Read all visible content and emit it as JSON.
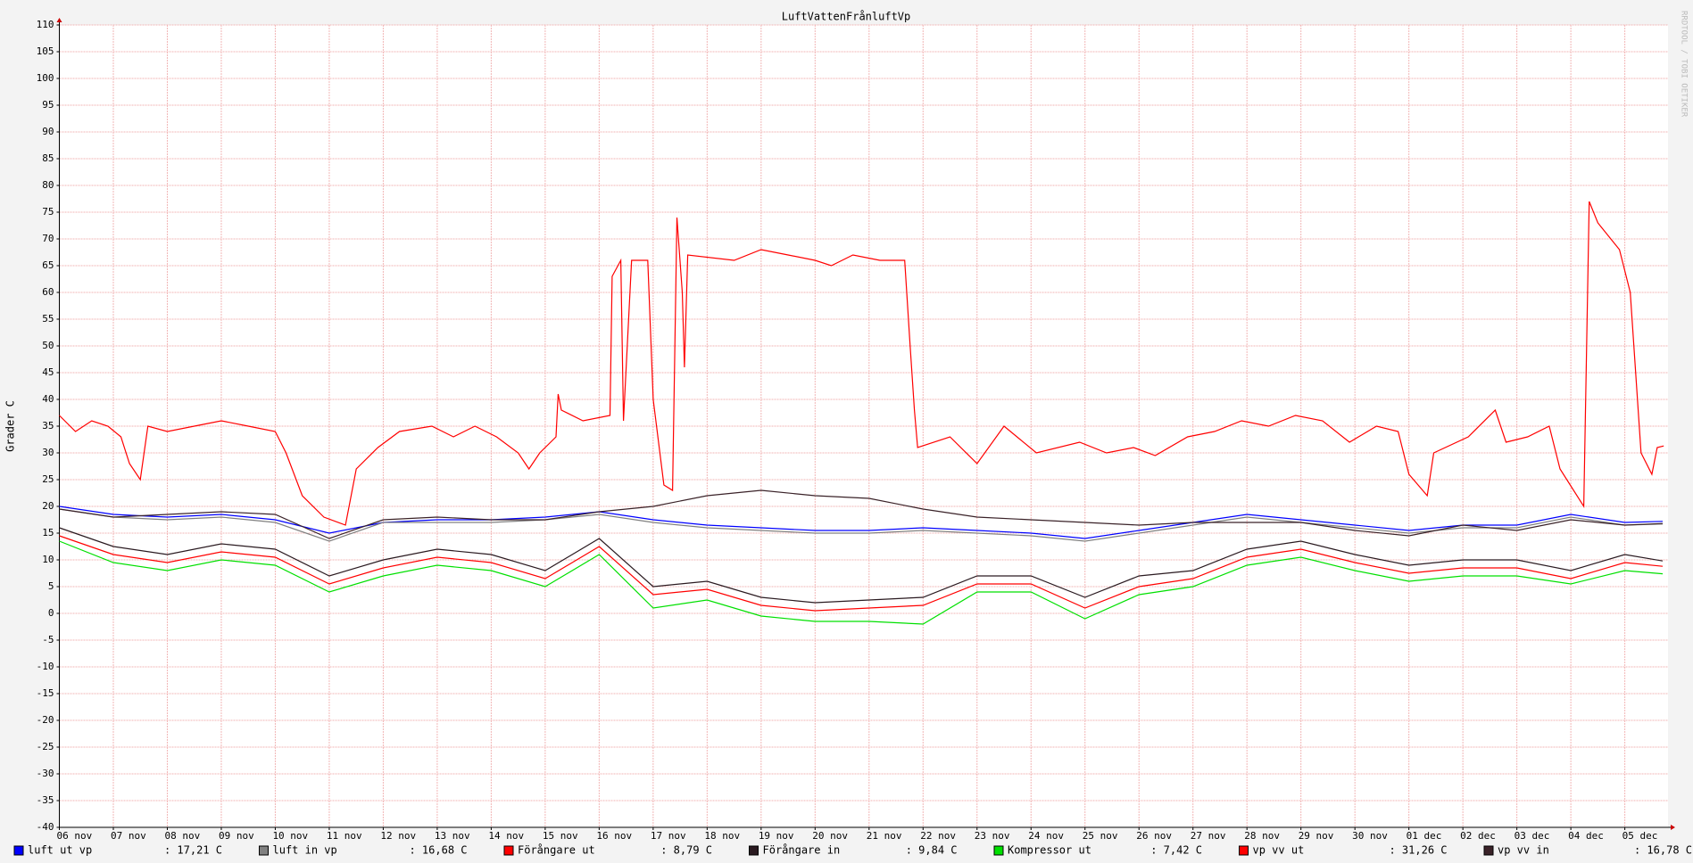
{
  "chart_data": {
    "type": "line",
    "title": "LuftVattenFrånluftVp",
    "y_label": "Grader C",
    "watermark": "RRDTOOL / TOBI OETIKER",
    "grid": true,
    "xlim": [
      0,
      29.8
    ],
    "ylim": [
      -40,
      110
    ],
    "xticks": [
      {
        "value": 0,
        "label": "06 nov"
      },
      {
        "value": 1,
        "label": "07 nov"
      },
      {
        "value": 2,
        "label": "08 nov"
      },
      {
        "value": 3,
        "label": "09 nov"
      },
      {
        "value": 4,
        "label": "10 nov"
      },
      {
        "value": 5,
        "label": "11 nov"
      },
      {
        "value": 6,
        "label": "12 nov"
      },
      {
        "value": 7,
        "label": "13 nov"
      },
      {
        "value": 8,
        "label": "14 nov"
      },
      {
        "value": 9,
        "label": "15 nov"
      },
      {
        "value": 10,
        "label": "16 nov"
      },
      {
        "value": 11,
        "label": "17 nov"
      },
      {
        "value": 12,
        "label": "18 nov"
      },
      {
        "value": 13,
        "label": "19 nov"
      },
      {
        "value": 14,
        "label": "20 nov"
      },
      {
        "value": 15,
        "label": "21 nov"
      },
      {
        "value": 16,
        "label": "22 nov"
      },
      {
        "value": 17,
        "label": "23 nov"
      },
      {
        "value": 18,
        "label": "24 nov"
      },
      {
        "value": 19,
        "label": "25 nov"
      },
      {
        "value": 20,
        "label": "26 nov"
      },
      {
        "value": 21,
        "label": "27 nov"
      },
      {
        "value": 22,
        "label": "28 nov"
      },
      {
        "value": 23,
        "label": "29 nov"
      },
      {
        "value": 24,
        "label": "30 nov"
      },
      {
        "value": 25,
        "label": "01 dec"
      },
      {
        "value": 26,
        "label": "02 dec"
      },
      {
        "value": 27,
        "label": "03 dec"
      },
      {
        "value": 28,
        "label": "04 dec"
      },
      {
        "value": 29,
        "label": "05 dec"
      }
    ],
    "yticks": [
      -40,
      -35,
      -30,
      -25,
      -20,
      -15,
      -10,
      -5,
      0,
      5,
      10,
      15,
      20,
      25,
      30,
      35,
      40,
      45,
      50,
      55,
      60,
      65,
      70,
      75,
      80,
      85,
      90,
      95,
      100,
      105,
      110
    ],
    "x": [
      0,
      1,
      2,
      3,
      4,
      5,
      6,
      7,
      8,
      9,
      10,
      11,
      12,
      13,
      14,
      15,
      16,
      17,
      18,
      19,
      20,
      21,
      22,
      23,
      24,
      25,
      26,
      27,
      28,
      29,
      29.7
    ],
    "series": [
      {
        "name": "luft ut vp",
        "color": "#0000ff",
        "legend_value": ": 17,21 C",
        "values": [
          20,
          18.5,
          18,
          18.5,
          17.5,
          15,
          17,
          17.5,
          17.5,
          18,
          19,
          17.5,
          16.5,
          16,
          15.5,
          15.5,
          16,
          15.5,
          15,
          14,
          15.5,
          17,
          18.5,
          17.5,
          16.5,
          15.5,
          16.5,
          16.5,
          18.5,
          17,
          17.2
        ]
      },
      {
        "name": "luft in vp",
        "color": "#808080",
        "legend_value": ": 16,68 C",
        "values": [
          19.5,
          18,
          17.5,
          18,
          17,
          13.5,
          17,
          17,
          17,
          17.5,
          18.5,
          17,
          16,
          15.5,
          15,
          15,
          15.5,
          15,
          14.5,
          13.5,
          15,
          16.5,
          18,
          17,
          16,
          15,
          16,
          16,
          18,
          16.5,
          16.7
        ]
      },
      {
        "name": "Förångare ut",
        "color": "#ff0000",
        "legend_value": ": 8,79 C",
        "values": [
          14.5,
          11,
          9.5,
          11.5,
          10.5,
          5.5,
          8.5,
          10.5,
          9.5,
          6.5,
          12.5,
          3.5,
          4.5,
          1.5,
          0.5,
          1,
          1.5,
          5.5,
          5.5,
          1,
          5,
          6.5,
          10.5,
          12,
          9.5,
          7.5,
          8.5,
          8.5,
          6.5,
          9.5,
          8.8
        ]
      },
      {
        "name": "Förångare in",
        "color": "#2a1a20",
        "legend_value": ": 9,84 C",
        "values": [
          16,
          12.5,
          11,
          13,
          12,
          7,
          10,
          12,
          11,
          8,
          14,
          5,
          6,
          3,
          2,
          2.5,
          3,
          7,
          7,
          3,
          7,
          8,
          12,
          13.5,
          11,
          9,
          10,
          10,
          8,
          11,
          9.8
        ]
      },
      {
        "name": "Kompressor ut",
        "color": "#00e000",
        "legend_value": ": 7,42 C",
        "values": [
          13.5,
          9.5,
          8,
          10,
          9,
          4,
          7,
          9,
          8,
          5,
          11,
          1,
          2.5,
          -0.5,
          -1.5,
          -1.5,
          -2,
          4,
          4,
          -1,
          3.5,
          5,
          9,
          10.5,
          8,
          6,
          7,
          7,
          5.5,
          8,
          7.4
        ]
      },
      {
        "name": "vp vv ut",
        "color": "#ff0000",
        "legend_value": ": 31,26 C",
        "x": [
          0,
          0.3,
          0.6,
          0.9,
          1.14,
          1.3,
          1.5,
          1.64,
          2,
          2.5,
          3,
          3.5,
          4,
          4.2,
          4.5,
          4.9,
          5.3,
          5.5,
          5.9,
          6.3,
          6.9,
          7.3,
          7.7,
          8.1,
          8.5,
          8.7,
          8.9,
          9.2,
          9.24,
          9.3,
          9.7,
          10.2,
          10.24,
          10.4,
          10.45,
          10.6,
          10.9,
          11,
          11.2,
          11.36,
          11.44,
          11.54,
          11.58,
          11.64,
          12.5,
          13,
          13.5,
          14,
          14.3,
          14.7,
          15.2,
          15.66,
          15.76,
          15.84,
          15.9,
          16.5,
          17,
          17.5,
          18.1,
          18.9,
          19.4,
          19.9,
          20.3,
          20.9,
          21.4,
          21.9,
          22.4,
          22.9,
          23.4,
          23.9,
          24.4,
          24.8,
          25,
          25.34,
          25.46,
          26.1,
          26.6,
          26.8,
          27.2,
          27.6,
          27.8,
          28.24,
          28.34,
          28.5,
          28.9,
          29.1,
          29.3,
          29.5,
          29.6,
          29.72
        ],
        "values": [
          37,
          34,
          36,
          35,
          33,
          28,
          25,
          35,
          34,
          35,
          36,
          35,
          34,
          30,
          22,
          18,
          16.5,
          27,
          31,
          34,
          35,
          33,
          35,
          33,
          30,
          27,
          30,
          33,
          41,
          38,
          36,
          37,
          63,
          66,
          36,
          66,
          66,
          40,
          24,
          23,
          74,
          60,
          46,
          67,
          66,
          68,
          67,
          66,
          65,
          67,
          66,
          66,
          50,
          38,
          31,
          33,
          28,
          35,
          30,
          32,
          30,
          31,
          29.5,
          33,
          34,
          36,
          35,
          37,
          36,
          32,
          35,
          34,
          26,
          22,
          30,
          33,
          38,
          32,
          33,
          35,
          27,
          20,
          77,
          73,
          68,
          60,
          30,
          26,
          31,
          31.3
        ]
      },
      {
        "name": "vp vv in",
        "color": "#3a2228",
        "legend_value": ": 16,78 C",
        "values": [
          19.5,
          18,
          18.5,
          19,
          18.5,
          14,
          17.5,
          18,
          17.5,
          17.5,
          19,
          20,
          22,
          23,
          22,
          21.5,
          19.5,
          18,
          17.5,
          17,
          16.5,
          17,
          17,
          17,
          15.5,
          14.5,
          16.5,
          15.5,
          17.5,
          16.5,
          16.8
        ]
      }
    ]
  }
}
